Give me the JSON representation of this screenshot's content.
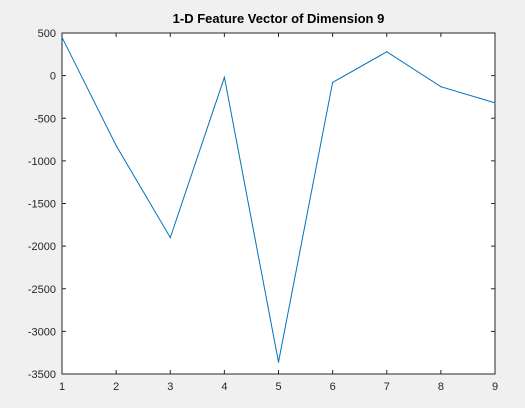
{
  "chart_data": {
    "type": "line",
    "title": "1-D Feature Vector of Dimension 9",
    "xlabel": "",
    "ylabel": "",
    "x": [
      1,
      2,
      3,
      4,
      5,
      6,
      7,
      8,
      9
    ],
    "series": [
      {
        "values": [
          450,
          -820,
          -1900,
          -20,
          -3360,
          -80,
          280,
          -130,
          -320
        ]
      }
    ],
    "xlim": [
      1,
      9
    ],
    "ylim": [
      -3500,
      500
    ],
    "xticks": [
      1,
      2,
      3,
      4,
      5,
      6,
      7,
      8,
      9
    ],
    "yticks": [
      500,
      0,
      -500,
      -1000,
      -1500,
      -2000,
      -2500,
      -3000,
      -3500
    ],
    "grid": false,
    "legend": "none",
    "colors": {
      "line": "#0072bd",
      "axes_background": "#ffffff",
      "figure_background": "#f0f0f0",
      "axis": "#262626"
    }
  }
}
